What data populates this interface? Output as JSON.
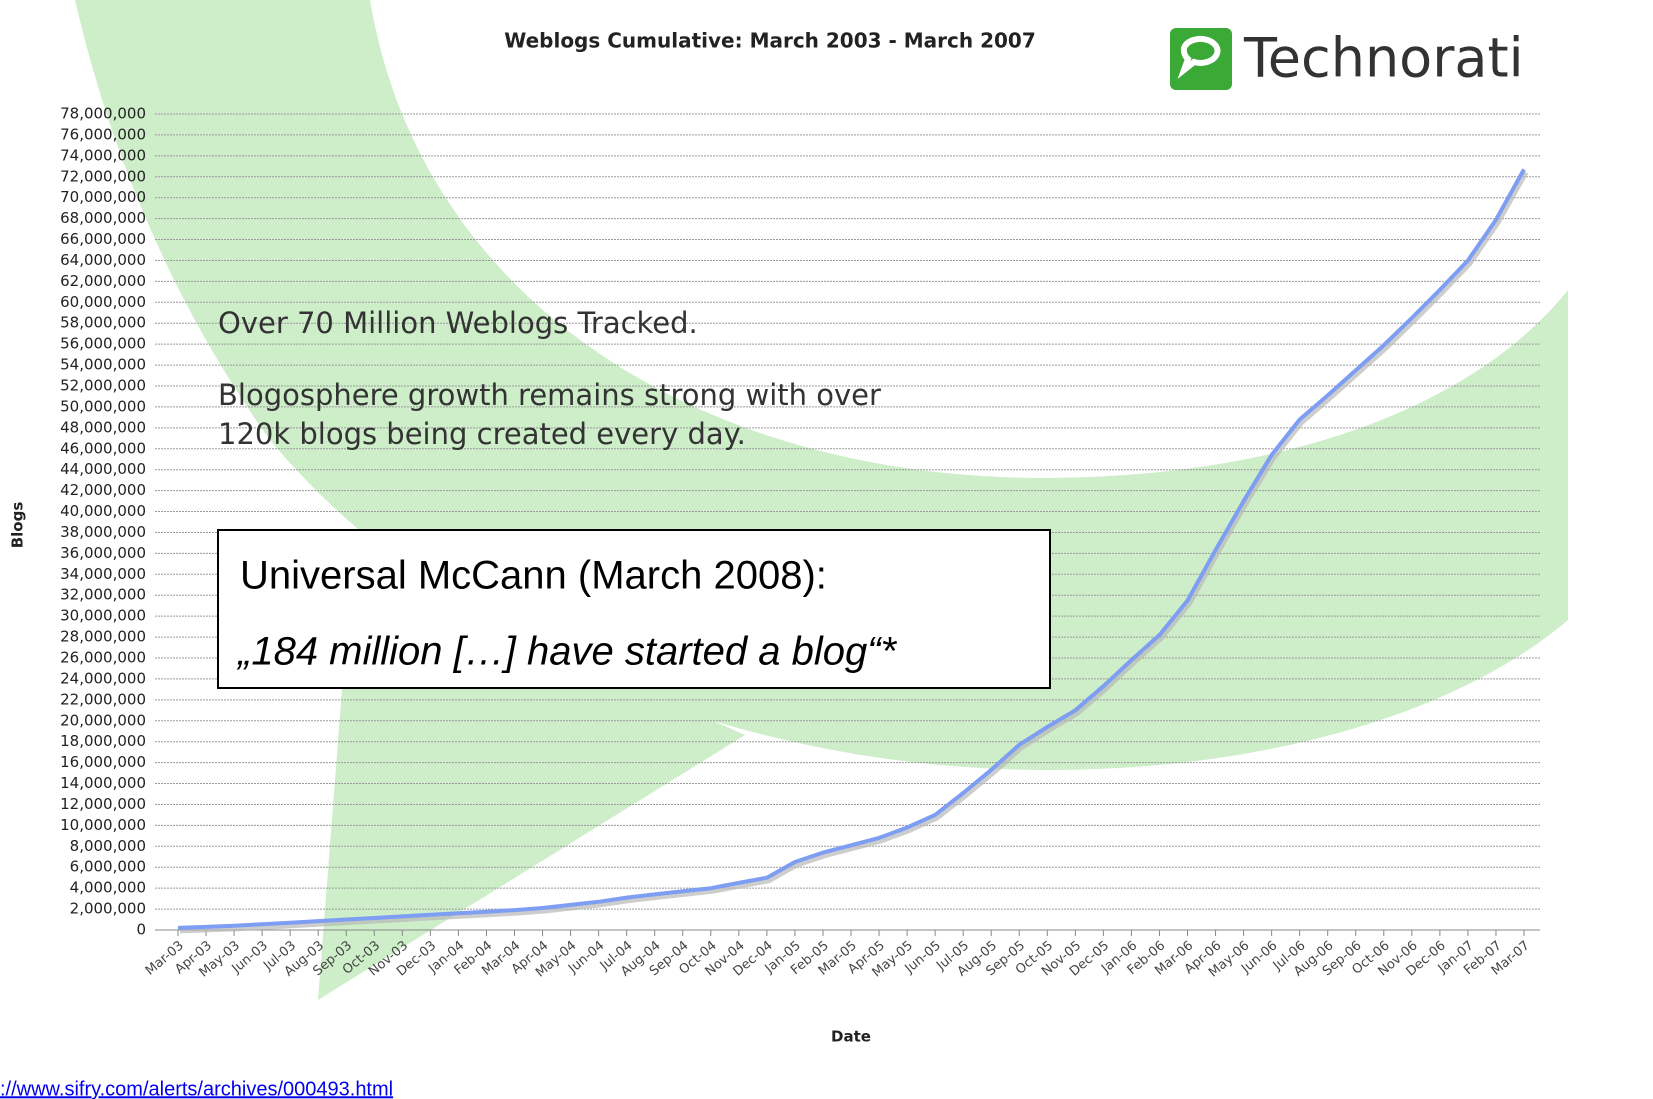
{
  "chart_data": {
    "type": "line",
    "title": "Weblogs Cumulative: March 2003 - March 2007",
    "y_label": "Blogs",
    "x_label": "Date",
    "logo": "Technorati",
    "annotations": [
      "Over 70 Million Weblogs Tracked.",
      "Blogosphere growth remains strong with over",
      "120k blogs being created every day."
    ],
    "box": [
      "Universal McCann (March 2008):",
      "„184 million […] have started a blog“*"
    ],
    "source": "://www.sifry.com/alerts/archives/000493.html",
    "color": "#7d9ef2",
    "grid": true,
    "categories": [
      "Mar-03",
      "Apr-03",
      "May-03",
      "Jun-03",
      "Jul-03",
      "Aug-03",
      "Sep-03",
      "Oct-03",
      "Nov-03",
      "Dec-03",
      "Jan-04",
      "Feb-04",
      "Mar-04",
      "Apr-04",
      "May-04",
      "Jun-04",
      "Jul-04",
      "Aug-04",
      "Sep-04",
      "Oct-04",
      "Nov-04",
      "Dec-04",
      "Jan-05",
      "Feb-05",
      "Mar-05",
      "Apr-05",
      "May-05",
      "Jun-05",
      "Jul-05",
      "Aug-05",
      "Sep-05",
      "Oct-05",
      "Nov-05",
      "Dec-05",
      "Jan-06",
      "Feb-06",
      "Mar-06",
      "Apr-06",
      "May-06",
      "Jun-06",
      "Jul-06",
      "Aug-06",
      "Sep-06",
      "Oct-06",
      "Nov-06",
      "Dec-06",
      "Jan-07",
      "Feb-07",
      "Mar-07"
    ],
    "values": [
      200000,
      300000,
      400000,
      550000,
      700000,
      850000,
      1000000,
      1150000,
      1300000,
      1450000,
      1600000,
      1750000,
      1900000,
      2100000,
      2400000,
      2700000,
      3100000,
      3400000,
      3700000,
      4000000,
      4500000,
      5000000,
      6500000,
      7400000,
      8100000,
      8800000,
      9800000,
      11000000,
      13100000,
      15300000,
      17700000,
      19400000,
      21000000,
      23300000,
      25800000,
      28200000,
      31500000,
      36300000,
      41000000,
      45400000,
      48800000,
      51100000,
      53500000,
      55900000,
      58500000,
      61200000,
      64000000,
      67900000,
      72700000
    ],
    "ylim": [
      0,
      78000000
    ],
    "yticks": [
      0,
      {
        "value": 2000000,
        "label": "2,000,000"
      },
      {
        "value": 4000000,
        "label": "4,000,000"
      },
      {
        "value": 6000000,
        "label": "6,000,000"
      },
      {
        "value": 8000000,
        "label": "8,000,000"
      },
      {
        "value": 10000000,
        "label": "10,000,000"
      },
      {
        "value": 12000000,
        "label": "12,000,000"
      },
      {
        "value": 14000000,
        "label": "14,000,000"
      },
      {
        "value": 16000000,
        "label": "16,000,000"
      },
      {
        "value": 18000000,
        "label": "18,000,000"
      },
      {
        "value": 20000000,
        "label": "20,000,000"
      },
      {
        "value": 22000000,
        "label": "22,000,000"
      },
      {
        "value": 24000000,
        "label": "24,000,000"
      },
      {
        "value": 26000000,
        "label": "26,000,000"
      },
      {
        "value": 28000000,
        "label": "28,000,000"
      },
      {
        "value": 30000000,
        "label": "30,000,000"
      },
      {
        "value": 32000000,
        "label": "32,000,000"
      },
      {
        "value": 34000000,
        "label": "34,000,000"
      },
      {
        "value": 36000000,
        "label": "36,000,000"
      },
      {
        "value": 38000000,
        "label": "38,000,000"
      },
      {
        "value": 40000000,
        "label": "40,000,000"
      },
      {
        "value": 42000000,
        "label": "42,000,000"
      },
      {
        "value": 44000000,
        "label": "44,000,000"
      },
      {
        "value": 46000000,
        "label": "46,000,000"
      },
      {
        "value": 48000000,
        "label": "48,000,000"
      },
      {
        "value": 50000000,
        "label": "50,000,000"
      },
      {
        "value": 52000000,
        "label": "52,000,000"
      },
      {
        "value": 54000000,
        "label": "54,000,000"
      },
      {
        "value": 56000000,
        "label": "56,000,000"
      },
      {
        "value": 58000000,
        "label": "58,000,000"
      },
      {
        "value": 60000000,
        "label": "60,000,000"
      },
      {
        "value": 62000000,
        "label": "62,000,000"
      },
      {
        "value": 64000000,
        "label": "64,000,000"
      },
      {
        "value": 66000000,
        "label": "66,000,000"
      },
      {
        "value": 68000000,
        "label": "68,000,000"
      },
      {
        "value": 70000000,
        "label": "70,000,000"
      },
      {
        "value": 72000000,
        "label": "72,000,000"
      },
      {
        "value": 74000000,
        "label": "74,000,000"
      },
      {
        "value": 76000000,
        "label": "76,000,000"
      },
      {
        "value": 78000000,
        "label": "78,000,000"
      }
    ]
  }
}
